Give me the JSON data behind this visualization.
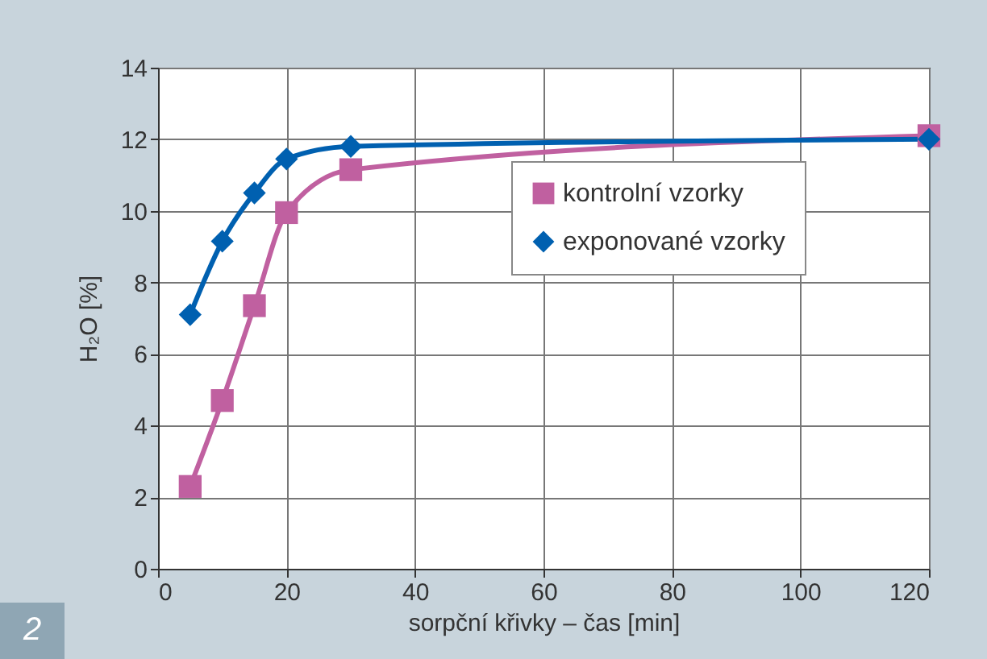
{
  "chart_data": {
    "type": "line",
    "xlabel": "sorpční křivky – čas [min]",
    "ylabel": "H₂O [%]",
    "annotations": [
      "2"
    ],
    "series": [
      {
        "name": "kontrolní vzorky",
        "color": "#c060a0",
        "marker": "square",
        "x": [
          5,
          10,
          15,
          20,
          30,
          120
        ],
        "values": [
          2.3,
          4.7,
          7.35,
          9.95,
          11.15,
          12.1
        ]
      },
      {
        "name": "exponované vzorky",
        "color": "#0060b0",
        "marker": "diamond",
        "x": [
          5,
          10,
          15,
          20,
          30,
          120
        ],
        "values": [
          7.1,
          9.15,
          10.5,
          11.45,
          11.8,
          12.0
        ]
      }
    ],
    "xlim": [
      0,
      120
    ],
    "xticks": [
      0,
      20,
      40,
      60,
      80,
      100,
      120
    ],
    "ylim": [
      0,
      14
    ],
    "yticks": [
      0,
      2,
      4,
      6,
      8,
      10,
      12,
      14
    ],
    "grid": true,
    "legend": "top right"
  }
}
